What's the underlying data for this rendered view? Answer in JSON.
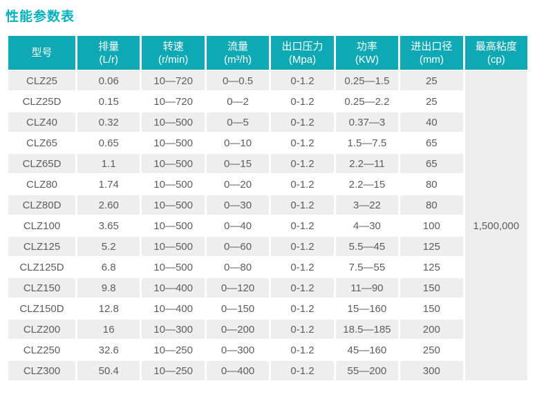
{
  "page_title": "性能参数表",
  "colors": {
    "title_text": "#00b1bd",
    "header_bg": "#0ea9b4",
    "header_text": "#ffffff",
    "row_alt_bg": "#eeeeee",
    "body_text": "#5c5c5c"
  },
  "table": {
    "columns": [
      {
        "label": "型号",
        "unit": ""
      },
      {
        "label": "排量",
        "unit": "(L/r)"
      },
      {
        "label": "转速",
        "unit": "(r/min)"
      },
      {
        "label": "流量",
        "unit": "(m³/h)"
      },
      {
        "label": "出口压力",
        "unit": "(Mpa)"
      },
      {
        "label": "功率",
        "unit": "(KW)"
      },
      {
        "label": "进出口径",
        "unit": "(mm)"
      },
      {
        "label": "最高粘度",
        "unit": "(cp)"
      }
    ],
    "rows": [
      [
        "CLZ25",
        "0.06",
        "10—720",
        "0—0.5",
        "0-1.2",
        "0.25—1.5",
        "25"
      ],
      [
        "CLZ25D",
        "0.15",
        "10—720",
        "0—2",
        "0-1.2",
        "0.25—2.2",
        "25"
      ],
      [
        "CLZ40",
        "0.32",
        "10—500",
        "0—5",
        "0-1.2",
        "0.37—3",
        "40"
      ],
      [
        "CLZ65",
        "0.65",
        "10—500",
        "0—10",
        "0-1.2",
        "1.5—7.5",
        "65"
      ],
      [
        "CLZ65D",
        "1.1",
        "10—500",
        "0—15",
        "0-1.2",
        "2.2—11",
        "65"
      ],
      [
        "CLZ80",
        "1.74",
        "10—500",
        "0—20",
        "0-1.2",
        "2.2—15",
        "80"
      ],
      [
        "CLZ80D",
        "2.60",
        "10—500",
        "0—30",
        "0-1.2",
        "3—22",
        "80"
      ],
      [
        "CLZ100",
        "3.65",
        "10—500",
        "0—40",
        "0-1.2",
        "4—30",
        "100"
      ],
      [
        "CLZ125",
        "5.2",
        "10—500",
        "0—60",
        "0-1.2",
        "5.5—45",
        "125"
      ],
      [
        "CLZ125D",
        "6.8",
        "10—500",
        "0—80",
        "0-1.2",
        "7.5—55",
        "125"
      ],
      [
        "CLZ150",
        "9.8",
        "10—400",
        "0—120",
        "0-1.2",
        "11—90",
        "150"
      ],
      [
        "CLZ150D",
        "12.8",
        "10—400",
        "0—150",
        "0-1.2",
        "15—160",
        "150"
      ],
      [
        "CLZ200",
        "16",
        "10—300",
        "0—200",
        "0-1.2",
        "18.5—185",
        "200"
      ],
      [
        "CLZ250",
        "32.6",
        "10—250",
        "0—300",
        "0-1.2",
        "45—160",
        "250"
      ],
      [
        "CLZ300",
        "50.4",
        "10—250",
        "0—400",
        "0-1.2",
        "55—200",
        "300"
      ]
    ],
    "max_viscosity": "1,500,000"
  }
}
